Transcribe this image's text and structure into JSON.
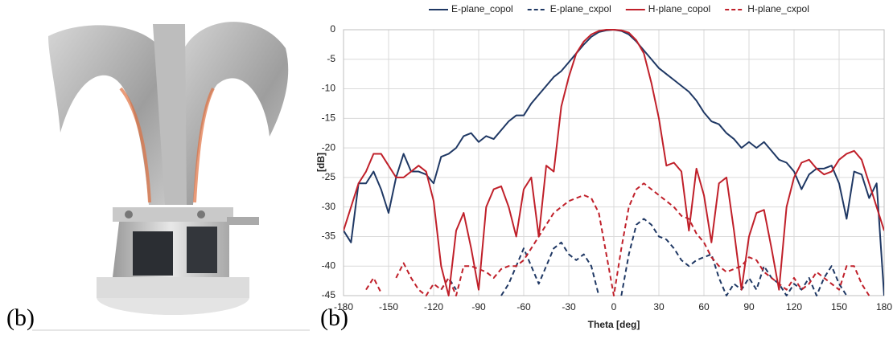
{
  "panel_labels": [
    "(b)",
    "(b)"
  ],
  "chart_data": {
    "type": "line",
    "x_label": "Theta [deg]",
    "y_label": "[dB]",
    "xlim": [
      -180,
      180
    ],
    "xticks": [
      -180,
      -150,
      -120,
      -90,
      -60,
      -30,
      0,
      30,
      60,
      90,
      120,
      150,
      180
    ],
    "ylim": [
      -45,
      0
    ],
    "yticks": [
      0,
      -5,
      -10,
      -15,
      -20,
      -25,
      -30,
      -35,
      -40,
      -45
    ],
    "grid": true,
    "legend": "top",
    "x": [
      -180,
      -175,
      -170,
      -165,
      -160,
      -155,
      -150,
      -145,
      -140,
      -135,
      -130,
      -125,
      -120,
      -115,
      -110,
      -105,
      -100,
      -95,
      -90,
      -85,
      -80,
      -75,
      -70,
      -65,
      -60,
      -55,
      -50,
      -45,
      -40,
      -35,
      -30,
      -25,
      -20,
      -15,
      -10,
      -5,
      0,
      5,
      10,
      15,
      20,
      25,
      30,
      35,
      40,
      45,
      50,
      55,
      60,
      65,
      70,
      75,
      80,
      85,
      90,
      95,
      100,
      105,
      110,
      115,
      120,
      125,
      130,
      135,
      140,
      145,
      150,
      155,
      160,
      165,
      170,
      175,
      180
    ],
    "series": [
      {
        "name": "E-plane_copol",
        "color": "#1f3864",
        "dashed": false,
        "values": [
          -34,
          -36,
          -26,
          -26,
          -24,
          -27,
          -31,
          -25,
          -21,
          -24,
          -24,
          -24.5,
          -26,
          -21.5,
          -21,
          -20,
          -18,
          -17.5,
          -19,
          -18,
          -18.5,
          -17,
          -15.5,
          -14.5,
          -14.5,
          -12.5,
          -11,
          -9.5,
          -8,
          -7,
          -5.5,
          -4,
          -2.5,
          -1.2,
          -0.4,
          -0.1,
          0,
          -0.2,
          -0.8,
          -2,
          -3.5,
          -5,
          -6.5,
          -7.5,
          -8.5,
          -9.5,
          -10.5,
          -12,
          -14,
          -15.5,
          -16,
          -17.5,
          -18.5,
          -20,
          -19,
          -20,
          -19,
          -20.5,
          -22,
          -22.5,
          -24,
          -27,
          -24.5,
          -23.5,
          -23.5,
          -23,
          -26,
          -32,
          -24,
          -24.5,
          -28.5,
          -26,
          -45
        ]
      },
      {
        "name": "E-plane_cxpol",
        "color": "#1f3864",
        "dashed": true,
        "values": [
          null,
          null,
          null,
          null,
          null,
          null,
          null,
          null,
          null,
          -44,
          null,
          -44,
          null,
          -44,
          -42,
          -44,
          null,
          null,
          null,
          null,
          null,
          -45,
          -43,
          -40,
          -37,
          -40,
          -43,
          -40,
          -37,
          -36,
          -38,
          -39,
          -38,
          -40,
          -45,
          null,
          null,
          -45,
          -38,
          -33,
          -32,
          -33,
          -35,
          -35.5,
          -37,
          -39,
          -40,
          -39,
          -38.5,
          -38,
          -42,
          -45,
          -43,
          -44,
          -42,
          -44,
          -40,
          -42,
          -43,
          -45,
          -43,
          -44,
          -42,
          -45,
          -42,
          -40,
          -43,
          -45,
          null,
          null,
          null,
          null,
          null
        ]
      },
      {
        "name": "H-plane_copol",
        "color": "#c0202a",
        "dashed": false,
        "values": [
          -34,
          -30,
          -26,
          -24,
          -21,
          -21,
          -23,
          -25,
          -25,
          -24,
          -23,
          -24,
          -29,
          -40,
          -45,
          -34,
          -31,
          -37,
          -44,
          -30,
          -27,
          -26.5,
          -30,
          -35,
          -27,
          -25,
          -35,
          -23,
          -24,
          -13,
          -8,
          -4,
          -2,
          -0.8,
          -0.2,
          0,
          0,
          -0.1,
          -0.5,
          -1.8,
          -4,
          -9,
          -15,
          -23,
          -22.5,
          -24,
          -34,
          -23.5,
          -28,
          -36,
          -26,
          -25,
          -34,
          -44,
          -35,
          -31,
          -30.5,
          -37,
          -44,
          -30,
          -25,
          -22.5,
          -22,
          -23.5,
          -24.5,
          -24,
          -22,
          -21,
          -20.5,
          -22,
          -26,
          -30,
          -34
        ]
      },
      {
        "name": "H-plane_cxpol",
        "color": "#c0202a",
        "dashed": true,
        "values": [
          null,
          null,
          null,
          -44,
          -42,
          -44.5,
          null,
          -42,
          -39.5,
          -42,
          -44,
          -45,
          -43,
          -44,
          -42,
          -45,
          -40,
          -40,
          -40.5,
          -41,
          -42,
          -40.5,
          -40,
          -40,
          -39,
          -37,
          -35,
          -33,
          -31,
          -30,
          -29,
          -28.5,
          -28,
          -28.5,
          -31,
          -38,
          -45,
          -37,
          -30,
          -27,
          -26,
          -27,
          -28,
          -29,
          -30,
          -31.5,
          -32,
          -34.5,
          -36,
          -38.5,
          -40,
          -41,
          -40.5,
          -40,
          -38.5,
          -39,
          -41,
          -42,
          -43,
          -44,
          -42,
          -44,
          -43,
          -41,
          -42,
          -43,
          -44,
          -40,
          -40,
          -43,
          -45,
          null,
          null
        ]
      }
    ]
  }
}
